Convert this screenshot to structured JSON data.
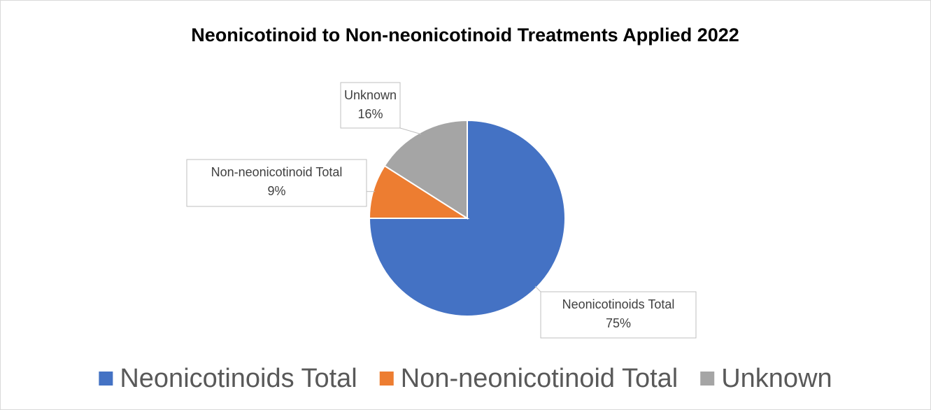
{
  "chart_data": {
    "type": "pie",
    "title": "Neonicotinoid to Non-neonicotinoid Treatments Applied 2022",
    "categories": [
      "Neonicotinoids Total",
      "Non-neonicotinoid Total",
      "Unknown"
    ],
    "values": [
      75,
      9,
      16
    ],
    "value_labels": [
      "75%",
      "9%",
      "16%"
    ],
    "colors": [
      "#4472c4",
      "#ed7d31",
      "#a5a5a5"
    ],
    "legend": "bottom"
  }
}
